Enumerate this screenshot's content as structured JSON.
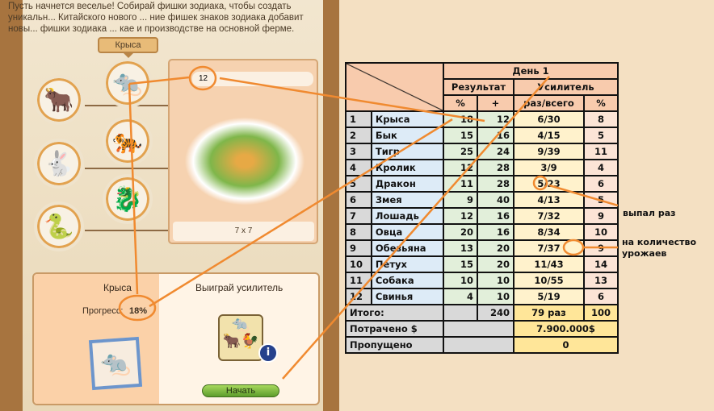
{
  "game": {
    "intro": "Пусть начнется веселье! Собирай фишки зодиака, чтобы создать уникальн... Китайского нового ... ние фишек знаков зодиака добавит новы... фишки зодиака ... кае и производстве на основной ферме.",
    "tooltip": "Крыса",
    "tokens": [
      {
        "icon": "rat-icon"
      },
      {
        "icon": "ox-icon"
      },
      {
        "icon": "tiger-icon"
      },
      {
        "icon": "rabbit-icon"
      },
      {
        "icon": "dragon-icon"
      },
      {
        "icon": "snake-icon"
      }
    ],
    "card": {
      "count": "12",
      "size": "7 x 7"
    },
    "tab_left": "Крыса",
    "tab_right": "Выиграй усилитель",
    "progress_label": "Прогресс:",
    "progress_value": "18%",
    "start_button": "Начать"
  },
  "table": {
    "day": "День 1",
    "result": "Результат",
    "booster": "Усилитель",
    "sub": [
      "%",
      "+",
      "раз/всего",
      "%"
    ],
    "rows": [
      [
        "1",
        "Крыса",
        "18",
        "12",
        "6/30",
        "8"
      ],
      [
        "2",
        "Бык",
        "15",
        "16",
        "4/15",
        "5"
      ],
      [
        "3",
        "Тигр",
        "25",
        "24",
        "9/39",
        "11"
      ],
      [
        "4",
        "Кролик",
        "12",
        "28",
        "3/9",
        "4"
      ],
      [
        "5",
        "Дракон",
        "11",
        "28",
        "5/23",
        "6"
      ],
      [
        "6",
        "Змея",
        "9",
        "40",
        "4/13",
        "5"
      ],
      [
        "7",
        "Лошадь",
        "12",
        "16",
        "7/32",
        "9"
      ],
      [
        "8",
        "Овца",
        "20",
        "16",
        "8/34",
        "10"
      ],
      [
        "9",
        "Обезьяна",
        "13",
        "20",
        "7/37",
        "9"
      ],
      [
        "10",
        "Петух",
        "15",
        "20",
        "11/43",
        "14"
      ],
      [
        "11",
        "Собака",
        "10",
        "10",
        "10/55",
        "13"
      ],
      [
        "12",
        "Свинья",
        "4",
        "10",
        "5/19",
        "6"
      ]
    ],
    "total_label": "Итого:",
    "total_plus": "240",
    "total_times": "79 раз",
    "total_pct": "100",
    "spent_label": "Потрачено $",
    "spent_value": "7.900.000$",
    "missed_label": "Пропущено",
    "missed_value": "0"
  },
  "annotations": {
    "dropped": "выпал раз",
    "harvests_1": "на количество",
    "harvests_2": "урожаев"
  },
  "colors": {
    "arrow": "#f08a30",
    "header": "#f8cbad",
    "total": "#ffe699"
  }
}
